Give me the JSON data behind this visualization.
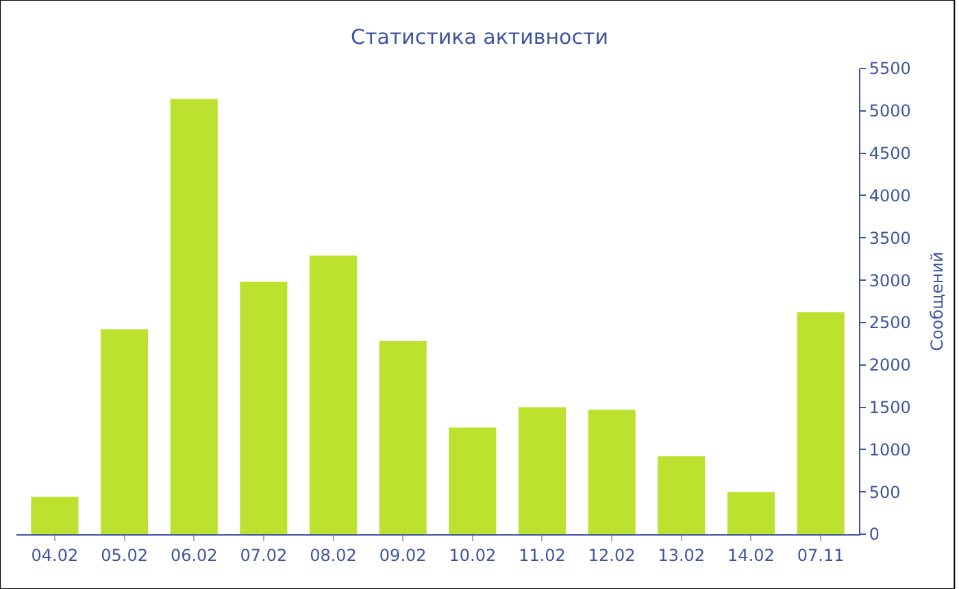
{
  "chart_data": {
    "type": "bar",
    "title": "Статистика активности",
    "ylabel": "Сообщений",
    "categories": [
      "04.02",
      "05.02",
      "06.02",
      "07.02",
      "08.02",
      "09.02",
      "10.02",
      "11.02",
      "12.02",
      "13.02",
      "14.02",
      "07.11"
    ],
    "values": [
      440,
      2420,
      5140,
      2980,
      3290,
      2280,
      1260,
      1500,
      1470,
      920,
      500,
      2620
    ],
    "color": "#bce12f",
    "ylim": [
      0,
      5500
    ],
    "yticks": [
      0,
      500,
      1000,
      1500,
      2000,
      2500,
      3000,
      3500,
      4000,
      4500,
      5000,
      5500
    ],
    "legend": false
  }
}
